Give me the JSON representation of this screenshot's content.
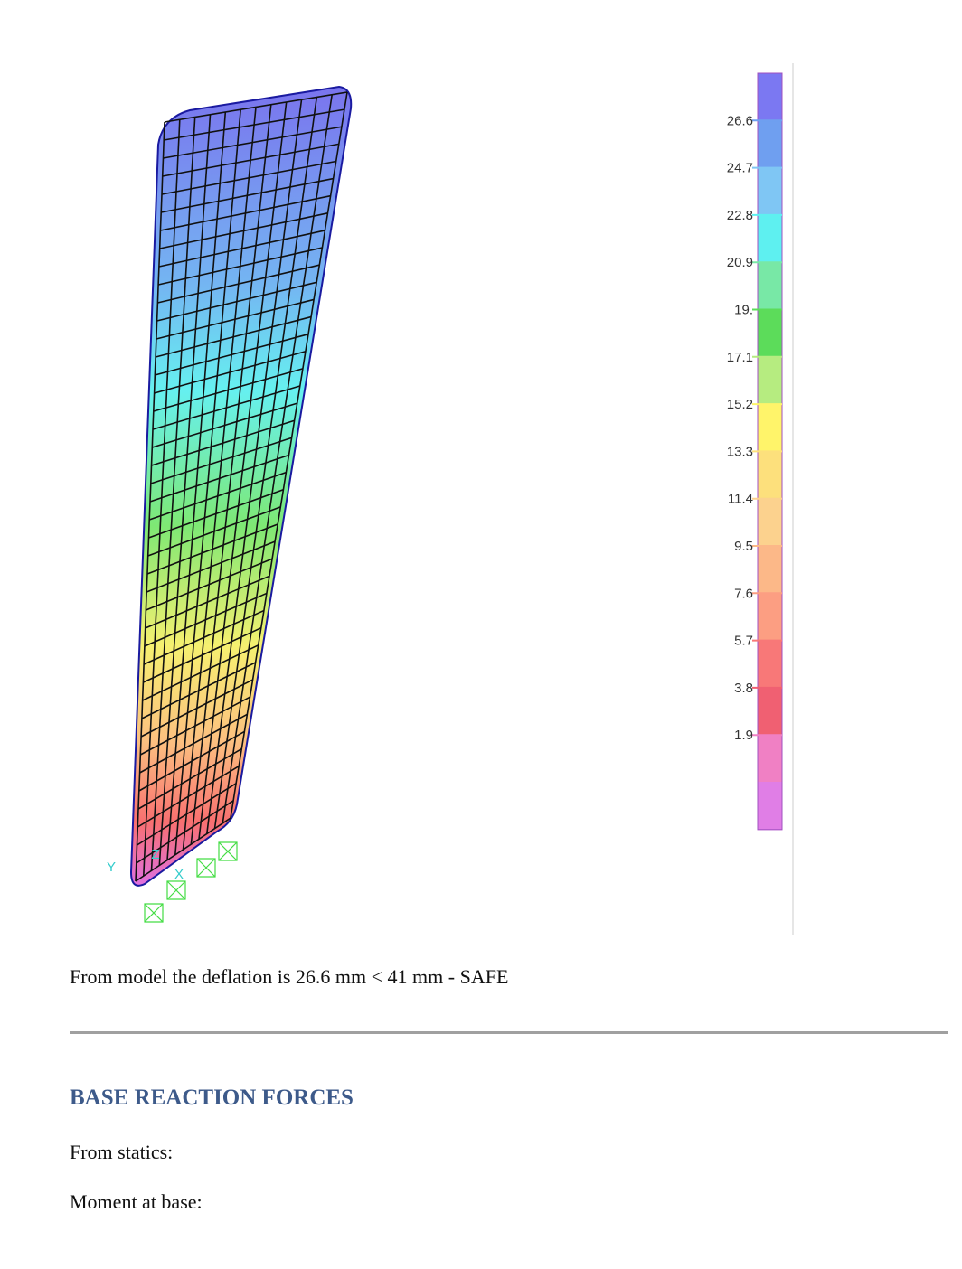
{
  "figure": {
    "axis_letters": [
      "Y",
      "Z",
      "X"
    ],
    "legend": {
      "labels": [
        "26.6",
        "24.7",
        "22.8",
        "20.9",
        "19.",
        "17.1",
        "15.2",
        "13.3",
        "11.4",
        "9.5",
        "7.6",
        "5.7",
        "3.8",
        "1.9"
      ],
      "band_colors": [
        "#7b78f2",
        "#6f9ff0",
        "#7fc6f4",
        "#5ef0f0",
        "#78e8a6",
        "#5cdc5a",
        "#b6ec80",
        "#fff46a",
        "#fde07c",
        "#fcd28e",
        "#fcb888",
        "#fc9e82",
        "#f87878",
        "#f06072",
        "#f080c4",
        "#e07ee6"
      ]
    }
  },
  "paragraph": "From model the deflation is 26.6 mm < 41 mm - SAFE",
  "section": {
    "heading": "BASE REACTION FORCES",
    "lines": [
      "From statics:",
      "Moment at base:"
    ]
  }
}
